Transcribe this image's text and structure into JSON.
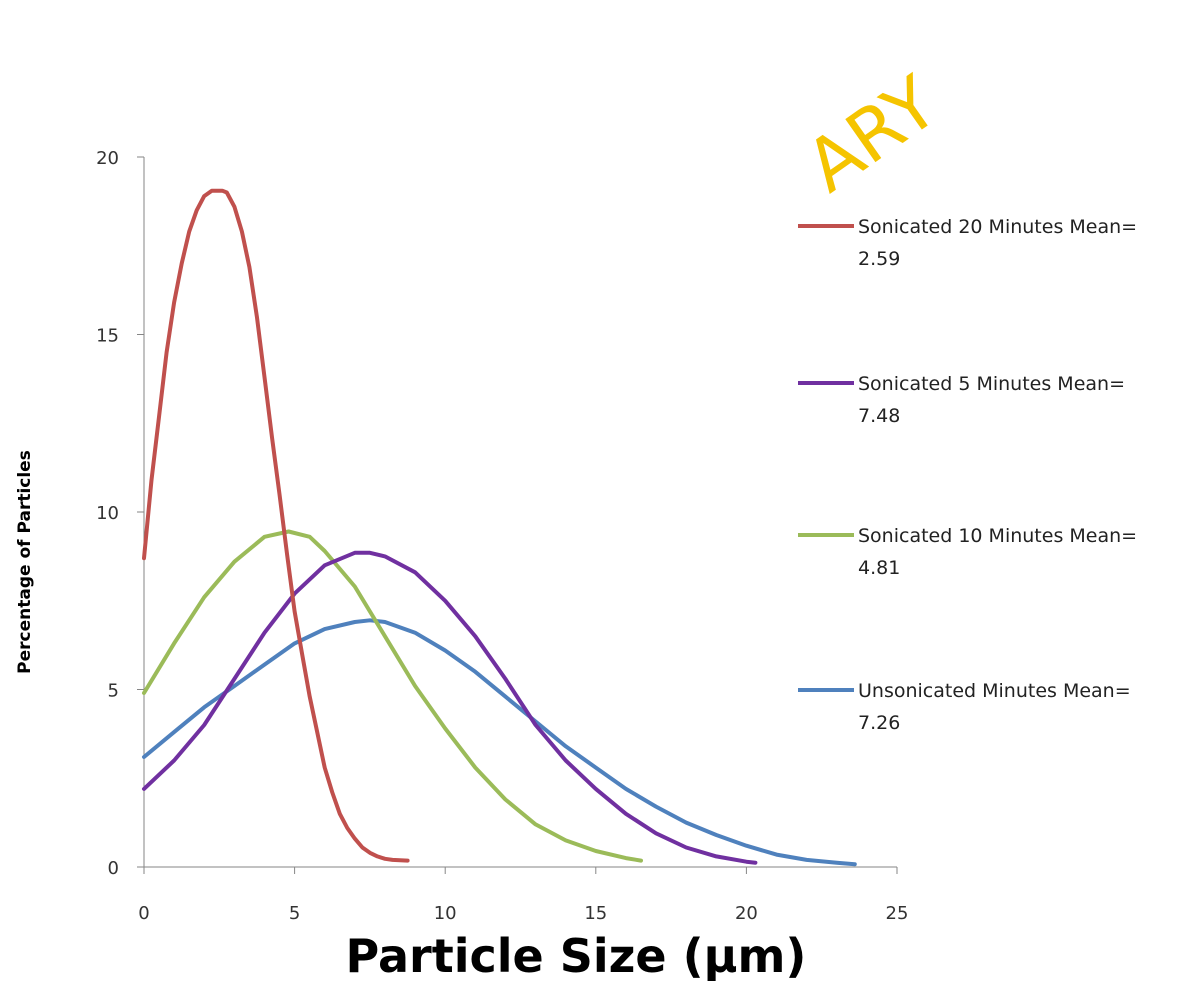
{
  "chart_data": {
    "type": "line",
    "title": "",
    "xlabel": "Particle Size (µm)",
    "ylabel": "Percentage of Particles",
    "xlim": [
      0,
      25
    ],
    "ylim": [
      0,
      20
    ],
    "xticks": [
      0,
      5,
      10,
      15,
      20,
      25
    ],
    "yticks": [
      0,
      5,
      10,
      15,
      20
    ],
    "grid": false,
    "legend_position": "right",
    "watermark": "ARY",
    "series": [
      {
        "name": "Sonicated 20 Minutes Mean= 2.59",
        "legend_lines": [
          "Sonicated 20 Minutes Mean=",
          "2.59"
        ],
        "color": "#c0504d",
        "x": [
          0,
          0.25,
          0.5,
          0.75,
          1.0,
          1.25,
          1.5,
          1.75,
          2.0,
          2.25,
          2.5,
          2.6,
          2.75,
          3.0,
          3.25,
          3.5,
          3.75,
          4.0,
          4.25,
          4.5,
          4.75,
          5.0,
          5.25,
          5.5,
          5.75,
          6.0,
          6.25,
          6.5,
          6.75,
          7.0,
          7.25,
          7.5,
          7.75,
          8.0,
          8.25,
          8.5,
          8.75
        ],
        "y": [
          8.7,
          10.9,
          12.7,
          14.5,
          15.9,
          17.0,
          17.9,
          18.5,
          18.9,
          19.05,
          19.05,
          19.05,
          19.0,
          18.6,
          17.9,
          16.9,
          15.5,
          13.8,
          12.1,
          10.5,
          8.8,
          7.2,
          6.0,
          4.8,
          3.8,
          2.8,
          2.1,
          1.5,
          1.1,
          0.8,
          0.55,
          0.4,
          0.3,
          0.23,
          0.2,
          0.19,
          0.18
        ]
      },
      {
        "name": "Sonicated 5 Minutes Mean= 7.48",
        "legend_lines": [
          "Sonicated 5 Minutes Mean=",
          "7.48"
        ],
        "color": "#7030a0",
        "x": [
          0,
          1,
          2,
          3,
          4,
          5,
          6,
          7,
          7.5,
          8,
          9,
          10,
          11,
          12,
          13,
          14,
          15,
          16,
          17,
          18,
          19,
          20,
          20.3
        ],
        "y": [
          2.2,
          3.0,
          4.0,
          5.3,
          6.6,
          7.7,
          8.5,
          8.85,
          8.85,
          8.75,
          8.3,
          7.5,
          6.5,
          5.3,
          4.0,
          3.0,
          2.2,
          1.5,
          0.95,
          0.55,
          0.3,
          0.15,
          0.12
        ]
      },
      {
        "name": "Sonicated 10 Minutes Mean= 4.81",
        "legend_lines": [
          "Sonicated 10 Minutes Mean=",
          "4.81"
        ],
        "color": "#9bbb59",
        "x": [
          0,
          1,
          2,
          3,
          4,
          4.8,
          5.5,
          6,
          7,
          8,
          9,
          10,
          11,
          12,
          13,
          14,
          15,
          16,
          16.5
        ],
        "y": [
          4.9,
          6.3,
          7.6,
          8.6,
          9.3,
          9.45,
          9.3,
          8.9,
          7.9,
          6.5,
          5.1,
          3.9,
          2.8,
          1.9,
          1.2,
          0.75,
          0.45,
          0.25,
          0.18
        ]
      },
      {
        "name": "Unsonicated Minutes Mean= 7.26",
        "legend_lines": [
          "Unsonicated Minutes Mean=",
          "7.26"
        ],
        "color": "#4f81bd",
        "x": [
          0,
          1,
          2,
          3,
          4,
          5,
          6,
          7,
          7.5,
          8,
          9,
          10,
          11,
          12,
          13,
          14,
          15,
          16,
          17,
          18,
          19,
          20,
          21,
          22,
          23,
          23.6
        ],
        "y": [
          3.1,
          3.8,
          4.5,
          5.1,
          5.7,
          6.3,
          6.7,
          6.9,
          6.95,
          6.9,
          6.6,
          6.1,
          5.5,
          4.8,
          4.1,
          3.4,
          2.8,
          2.2,
          1.7,
          1.25,
          0.9,
          0.6,
          0.35,
          0.2,
          0.12,
          0.08
        ]
      }
    ]
  }
}
